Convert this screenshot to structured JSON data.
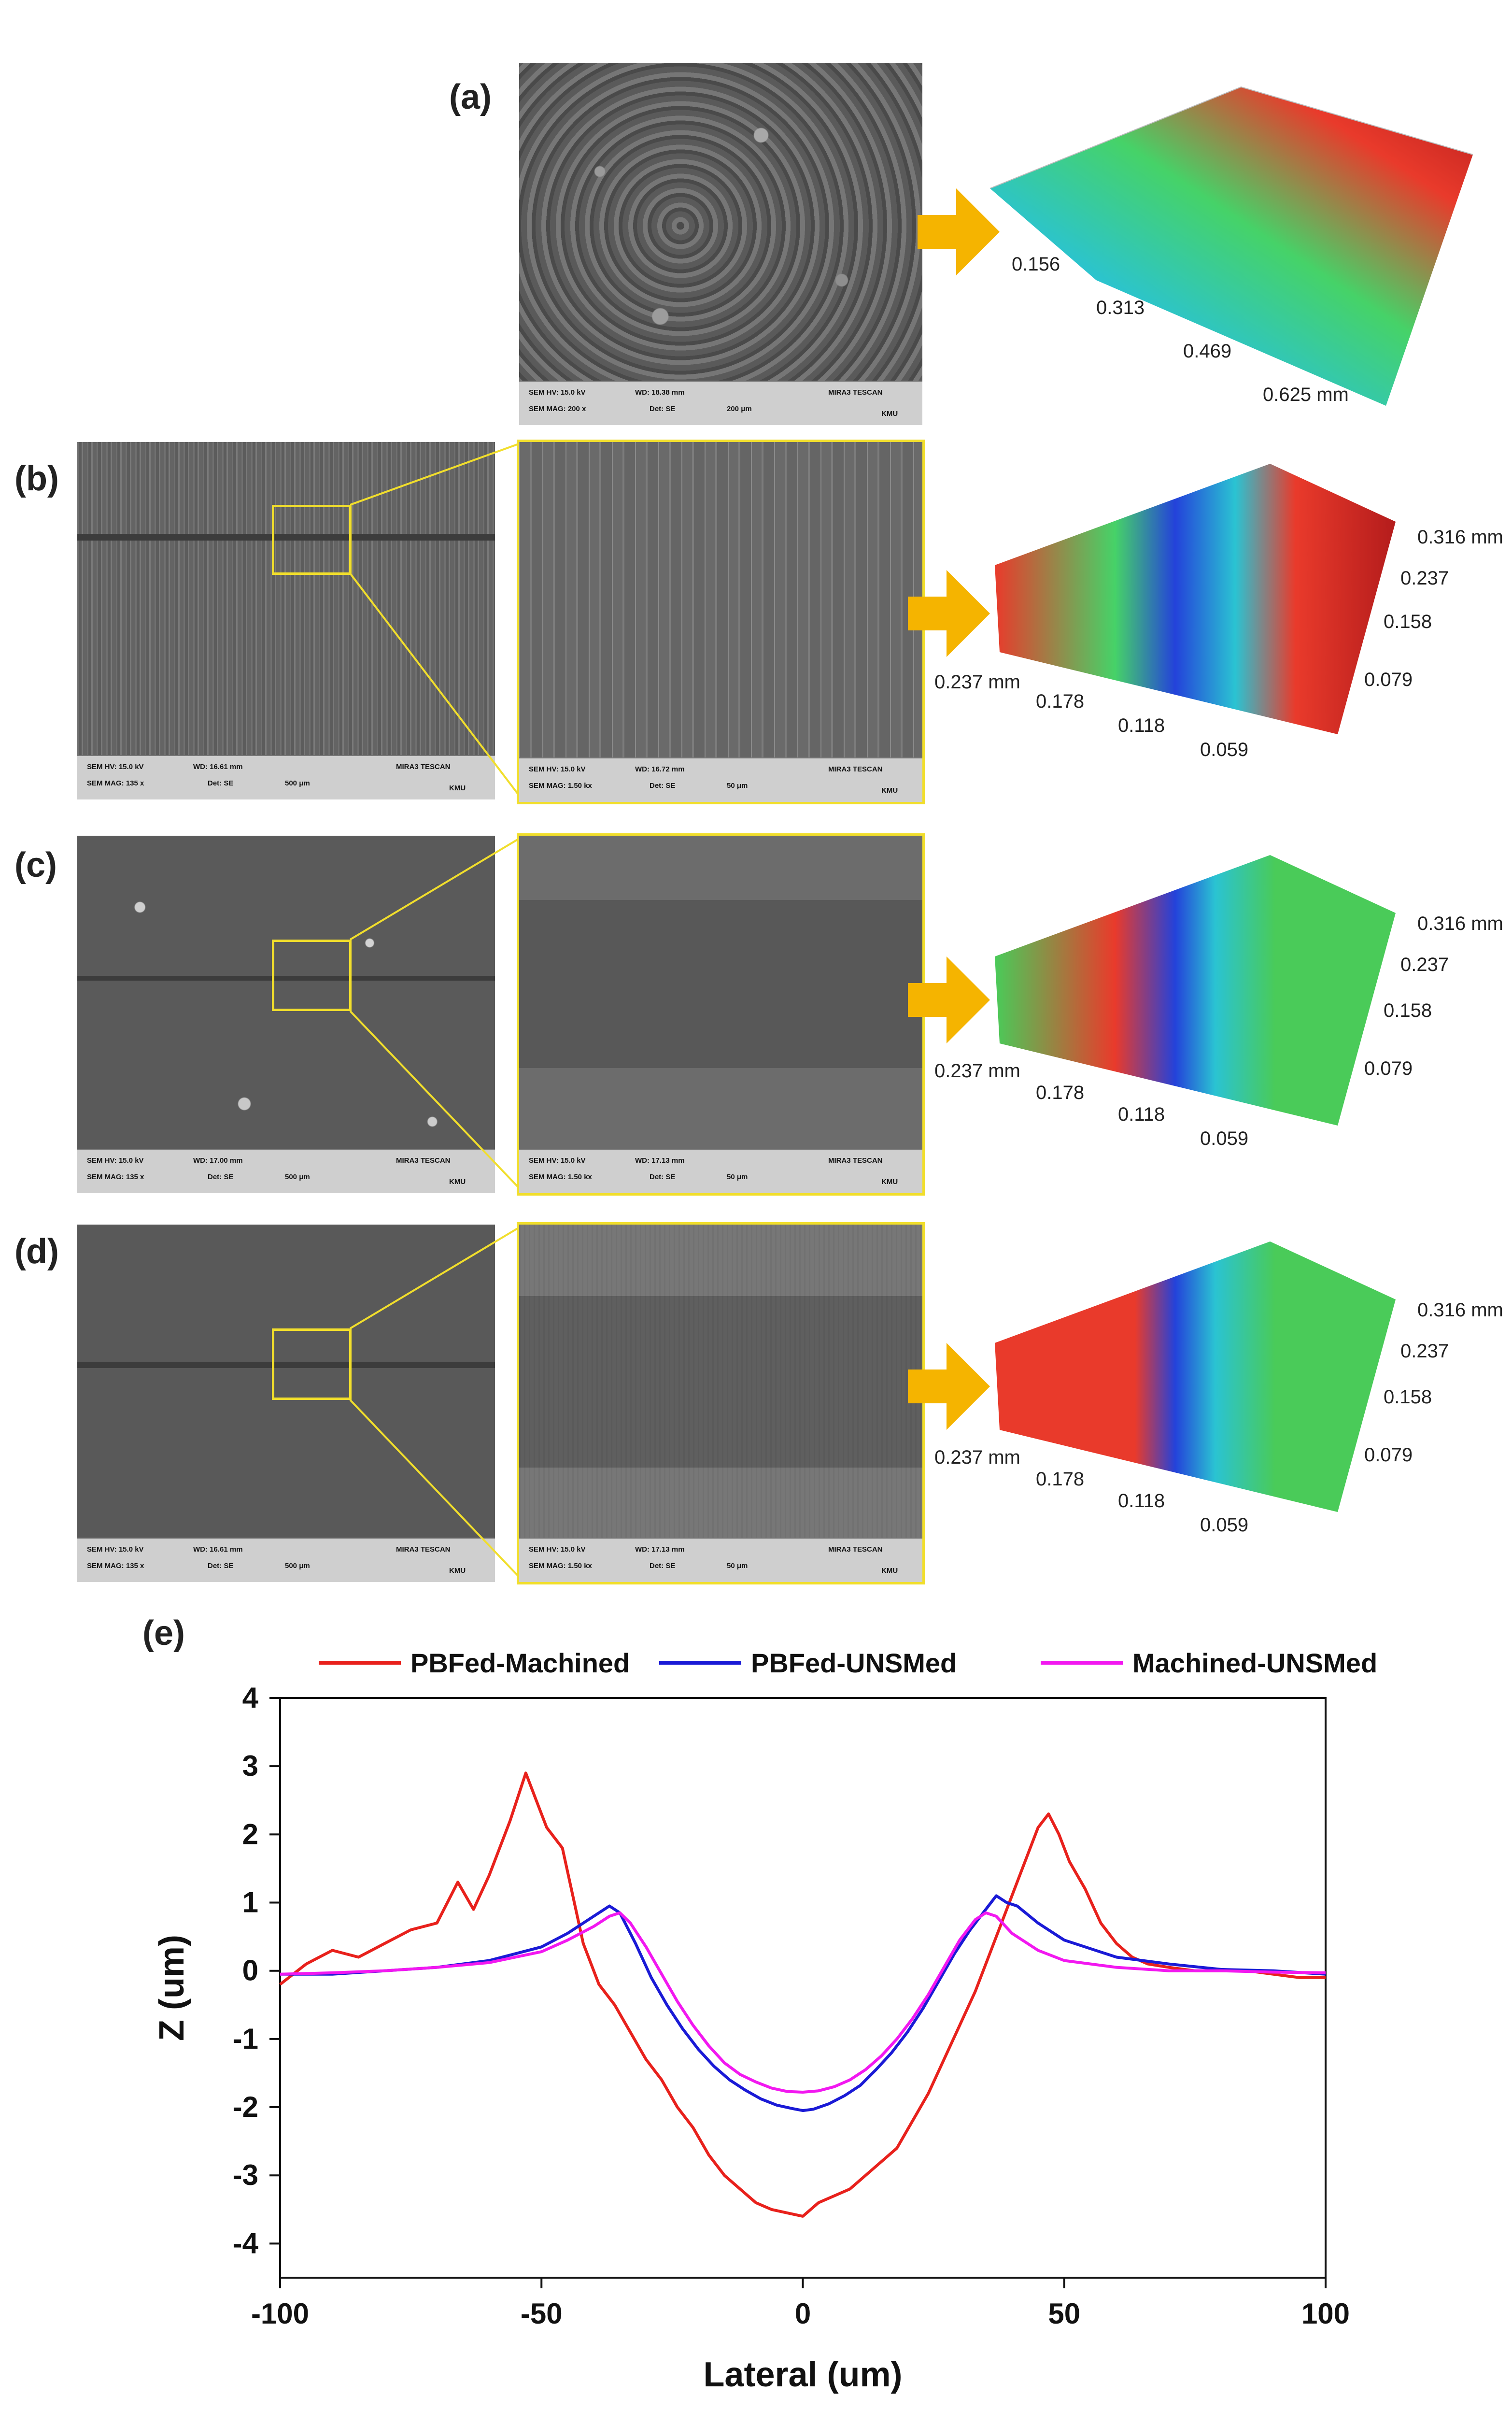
{
  "panels": {
    "a": {
      "label": "(a)",
      "sem": {
        "hv": "SEM HV: 15.0 kV",
        "wd": "WD: 18.38 mm",
        "mag": "SEM MAG: 200 x",
        "det": "Det: SE",
        "scale": "200 μm",
        "brand": "MIRA3 TESCAN",
        "org": "KMU"
      },
      "axis_labels": [
        "0.156",
        "0.313",
        "0.469",
        "0.625 mm"
      ]
    },
    "b": {
      "label": "(b)",
      "sem_low": {
        "hv": "SEM HV: 15.0 kV",
        "wd": "WD: 16.61 mm",
        "mag": "SEM MAG: 135 x",
        "det": "Det: SE",
        "scale": "500 μm",
        "brand": "MIRA3 TESCAN",
        "org": "KMU"
      },
      "sem_high": {
        "hv": "SEM HV: 15.0 kV",
        "wd": "WD: 16.72 mm",
        "mag": "SEM MAG: 1.50 kx",
        "det": "Det: SE",
        "scale": "50 μm",
        "brand": "MIRA3 TESCAN",
        "org": "KMU"
      },
      "axis_x": [
        "0.237 mm",
        "0.178",
        "0.118",
        "0.059"
      ],
      "axis_z": [
        "0.316 mm",
        "0.237",
        "0.158",
        "0.079"
      ]
    },
    "c": {
      "label": "(c)",
      "sem_low": {
        "hv": "SEM HV: 15.0 kV",
        "wd": "WD: 17.00 mm",
        "mag": "SEM MAG: 135 x",
        "det": "Det: SE",
        "scale": "500 μm",
        "brand": "MIRA3 TESCAN",
        "org": "KMU"
      },
      "sem_high": {
        "hv": "SEM HV: 15.0 kV",
        "wd": "WD: 17.13 mm",
        "mag": "SEM MAG: 1.50 kx",
        "det": "Det: SE",
        "scale": "50 μm",
        "brand": "MIRA3 TESCAN",
        "org": "KMU"
      },
      "axis_x": [
        "0.237 mm",
        "0.178",
        "0.118",
        "0.059"
      ],
      "axis_z": [
        "0.316 mm",
        "0.237",
        "0.158",
        "0.079"
      ]
    },
    "d": {
      "label": "(d)",
      "sem_low": {
        "hv": "SEM HV: 15.0 kV",
        "wd": "WD: 16.61 mm",
        "mag": "SEM MAG: 135 x",
        "det": "Det: SE",
        "scale": "500 μm",
        "brand": "MIRA3 TESCAN",
        "org": "KMU"
      },
      "sem_high": {
        "hv": "SEM HV: 15.0 kV",
        "wd": "WD: 17.13 mm",
        "mag": "SEM MAG: 1.50 kx",
        "det": "Det: SE",
        "scale": "50 μm",
        "brand": "MIRA3 TESCAN",
        "org": "KMU"
      },
      "axis_x": [
        "0.237 mm",
        "0.178",
        "0.118",
        "0.059"
      ],
      "axis_z": [
        "0.316 mm",
        "0.237",
        "0.158",
        "0.079"
      ]
    }
  },
  "colors": {
    "arrow": "#f5b400",
    "zoom_frame": "#f1de2c"
  },
  "chart_data": {
    "panel_label": "(e)",
    "type": "line",
    "title": "",
    "xlabel": "Lateral (um)",
    "ylabel": "Z (um)",
    "xlim": [
      -100,
      100
    ],
    "ylim": [
      -4.5,
      4
    ],
    "xticks": [
      -100,
      -50,
      0,
      50,
      100
    ],
    "yticks": [
      -4,
      -3,
      -2,
      -1,
      0,
      1,
      2,
      3,
      4
    ],
    "legend": "top",
    "series": [
      {
        "name": "PBFed-Machined",
        "color": "#e8211c",
        "x": [
          -100,
          -95,
          -90,
          -85,
          -80,
          -75,
          -70,
          -66,
          -63,
          -60,
          -56,
          -53,
          -51,
          -49,
          -46,
          -44,
          -42,
          -39,
          -36,
          -33,
          -30,
          -27,
          -24,
          -21,
          -18,
          -15,
          -12,
          -9,
          -6,
          -3,
          0,
          3,
          6,
          9,
          12,
          15,
          18,
          21,
          24,
          27,
          30,
          33,
          36,
          39,
          42,
          45,
          47,
          49,
          51,
          54,
          57,
          60,
          63,
          66,
          70,
          75,
          80,
          85,
          90,
          95,
          100
        ],
        "y": [
          -0.2,
          0.1,
          0.3,
          0.2,
          0.4,
          0.6,
          0.7,
          1.3,
          0.9,
          1.4,
          2.2,
          2.9,
          2.5,
          2.1,
          1.8,
          1.1,
          0.4,
          -0.2,
          -0.5,
          -0.9,
          -1.3,
          -1.6,
          -2.0,
          -2.3,
          -2.7,
          -3.0,
          -3.2,
          -3.4,
          -3.5,
          -3.55,
          -3.6,
          -3.4,
          -3.3,
          -3.2,
          -3.0,
          -2.8,
          -2.6,
          -2.2,
          -1.8,
          -1.3,
          -0.8,
          -0.3,
          0.3,
          0.9,
          1.5,
          2.1,
          2.3,
          2.0,
          1.6,
          1.2,
          0.7,
          0.4,
          0.2,
          0.1,
          0.05,
          0.0,
          0.0,
          0.0,
          -0.05,
          -0.1,
          -0.1
        ]
      },
      {
        "name": "PBFed-UNSMed",
        "color": "#1a1ad6",
        "x": [
          -100,
          -90,
          -80,
          -70,
          -60,
          -50,
          -45,
          -40,
          -37,
          -35,
          -32,
          -29,
          -26,
          -23,
          -20,
          -17,
          -14,
          -11,
          -8,
          -5,
          -2,
          0,
          2,
          5,
          8,
          11,
          14,
          17,
          20,
          23,
          26,
          29,
          32,
          35,
          37,
          39,
          41,
          45,
          50,
          60,
          70,
          80,
          90,
          100
        ],
        "y": [
          -0.05,
          -0.05,
          0.0,
          0.05,
          0.15,
          0.35,
          0.55,
          0.8,
          0.95,
          0.85,
          0.4,
          -0.1,
          -0.5,
          -0.85,
          -1.15,
          -1.4,
          -1.6,
          -1.75,
          -1.88,
          -1.97,
          -2.02,
          -2.05,
          -2.03,
          -1.95,
          -1.83,
          -1.68,
          -1.45,
          -1.2,
          -0.9,
          -0.55,
          -0.15,
          0.25,
          0.6,
          0.9,
          1.1,
          1.0,
          0.95,
          0.7,
          0.45,
          0.2,
          0.1,
          0.02,
          0.0,
          -0.05
        ]
      },
      {
        "name": "Machined-UNSMed",
        "color": "#f218f0",
        "x": [
          -100,
          -90,
          -80,
          -70,
          -60,
          -50,
          -45,
          -40,
          -37,
          -35,
          -33,
          -30,
          -27,
          -24,
          -21,
          -18,
          -15,
          -12,
          -9,
          -6,
          -3,
          0,
          3,
          6,
          9,
          12,
          15,
          18,
          21,
          24,
          27,
          30,
          33,
          35,
          37,
          40,
          45,
          50,
          60,
          70,
          80,
          90,
          100
        ],
        "y": [
          -0.05,
          -0.03,
          0.0,
          0.05,
          0.12,
          0.28,
          0.45,
          0.65,
          0.8,
          0.85,
          0.7,
          0.35,
          -0.05,
          -0.45,
          -0.8,
          -1.1,
          -1.35,
          -1.52,
          -1.63,
          -1.72,
          -1.77,
          -1.78,
          -1.76,
          -1.7,
          -1.6,
          -1.45,
          -1.25,
          -1.0,
          -0.7,
          -0.35,
          0.05,
          0.45,
          0.75,
          0.85,
          0.8,
          0.55,
          0.3,
          0.15,
          0.05,
          0.0,
          0.0,
          -0.02,
          -0.03
        ]
      }
    ]
  }
}
